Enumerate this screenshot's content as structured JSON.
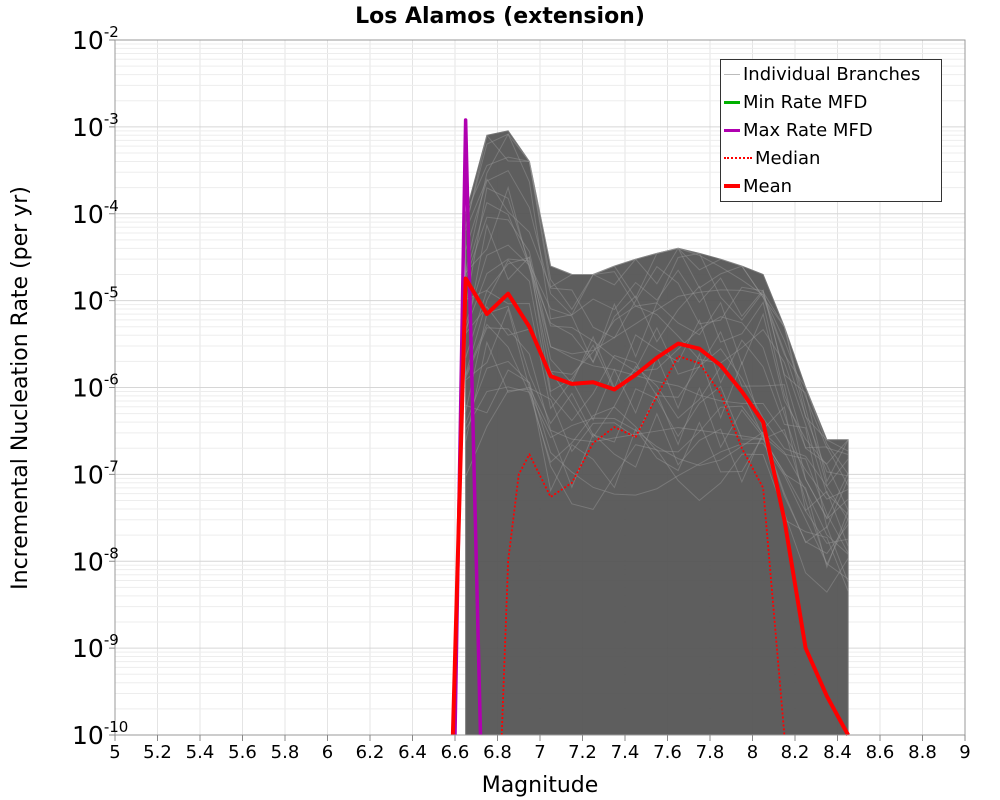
{
  "chart_data": {
    "type": "line",
    "title": "Los Alamos (extension)",
    "xlabel": "Magnitude",
    "ylabel": "Incremental Nucleation Rate (per yr)",
    "xlim": [
      5,
      9
    ],
    "ylim": [
      1e-10,
      0.01
    ],
    "yscale": "log",
    "grid": true,
    "x_ticks": [
      "5",
      "5.2",
      "5.4",
      "5.6",
      "5.8",
      "6",
      "6.2",
      "6.4",
      "6.6",
      "6.8",
      "7",
      "7.2",
      "7.4",
      "7.6",
      "7.8",
      "8",
      "8.2",
      "8.4",
      "8.6",
      "8.8",
      "9"
    ],
    "y_tick_exponents": [
      "-10",
      "-9",
      "-8",
      "-7",
      "-6",
      "-5",
      "-4",
      "-3",
      "-2"
    ],
    "y_tick_base": "10",
    "legend_position": "top-right",
    "series": [
      {
        "name": "Individual Branches",
        "color": "#555555",
        "style": "thin-band",
        "x": [
          6.65,
          6.75,
          6.85,
          6.95,
          7.05,
          7.15,
          7.25,
          7.35,
          7.45,
          7.55,
          7.65,
          7.75,
          7.85,
          7.95,
          8.05,
          8.15,
          8.25,
          8.35,
          8.45
        ],
        "upper": [
          0.0001,
          0.0008,
          0.0009,
          0.0004,
          2.5e-05,
          2e-05,
          2e-05,
          2.5e-05,
          3e-05,
          3.5e-05,
          4e-05,
          3.5e-05,
          3e-05,
          2.5e-05,
          2e-05,
          5e-06,
          1e-06,
          2.5e-07,
          2.5e-07
        ],
        "lower": [
          1e-10,
          1e-10,
          1e-10,
          1e-10,
          1e-10,
          1e-10,
          1e-10,
          1e-10,
          1e-10,
          1e-10,
          1e-10,
          1e-10,
          1e-10,
          1e-10,
          1e-10,
          1e-10,
          1e-10,
          1e-10,
          1e-10
        ]
      },
      {
        "name": "Min Rate MFD",
        "color": "#00b000",
        "x": [],
        "y": []
      },
      {
        "name": "Max Rate MFD",
        "color": "#b000b0",
        "x": [
          6.6,
          6.65,
          6.72
        ],
        "y": [
          1e-10,
          0.0012,
          1e-10
        ]
      },
      {
        "name": "Median",
        "color": "#ff0000",
        "style": "dotted",
        "x": [
          6.82,
          6.85,
          6.9,
          6.95,
          7.05,
          7.15,
          7.25,
          7.35,
          7.45,
          7.55,
          7.65,
          7.75,
          7.85,
          7.95,
          8.05,
          8.15
        ],
        "y": [
          1e-10,
          1e-08,
          1e-07,
          1.7e-07,
          5.5e-08,
          8e-08,
          2.3e-07,
          3.5e-07,
          2.7e-07,
          8e-07,
          2.3e-06,
          1.9e-06,
          8.5e-07,
          2e-07,
          7e-08,
          1e-10
        ]
      },
      {
        "name": "Mean",
        "color": "#ff0000",
        "style": "thick",
        "x": [
          6.59,
          6.65,
          6.75,
          6.85,
          6.95,
          7.05,
          7.15,
          7.25,
          7.35,
          7.45,
          7.55,
          7.65,
          7.75,
          7.85,
          7.95,
          8.05,
          8.15,
          8.25,
          8.35,
          8.45
        ],
        "y": [
          1e-10,
          1.8e-05,
          7e-06,
          1.2e-05,
          5e-06,
          1.35e-06,
          1.1e-06,
          1.15e-06,
          9.5e-07,
          1.4e-06,
          2.2e-06,
          3.2e-06,
          2.8e-06,
          1.8e-06,
          9e-07,
          4e-07,
          3e-08,
          1e-09,
          2.8e-10,
          1e-10
        ]
      }
    ]
  }
}
